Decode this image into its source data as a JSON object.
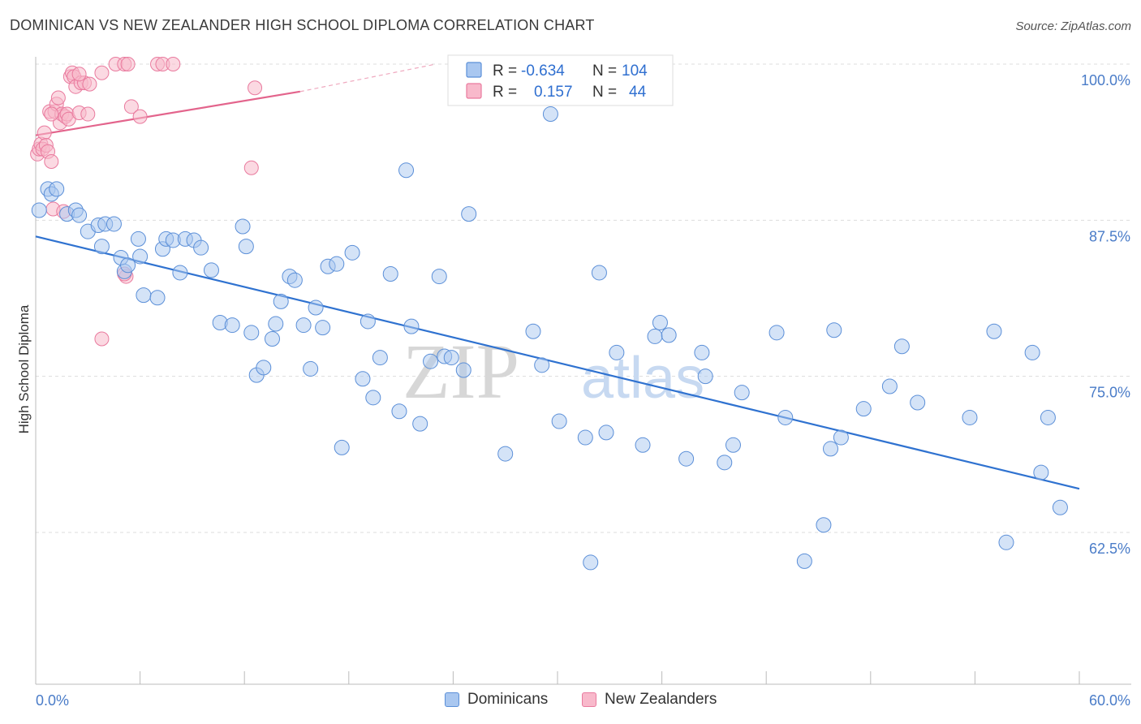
{
  "title": "DOMINICAN VS NEW ZEALANDER HIGH SCHOOL DIPLOMA CORRELATION CHART",
  "source": "Source: ZipAtlas.com",
  "watermark": {
    "zip": "ZIP",
    "atlas": "atlas"
  },
  "colors": {
    "blue_fill": "#a9c7f0",
    "blue_stroke": "#5b8fd8",
    "blue_line": "#2f72d0",
    "pink_fill": "#f8b9cb",
    "pink_stroke": "#e97a9e",
    "pink_line": "#e3648c",
    "tick_label": "#4a7cc8",
    "grid": "#dddddd"
  },
  "legend_top": [
    {
      "r_label": "R =",
      "r_value": "-0.634",
      "n_label": "N =",
      "n_value": "104"
    },
    {
      "r_label": "R =",
      "r_value": "0.157",
      "n_label": "N =",
      "n_value": "44"
    }
  ],
  "chart_data": {
    "type": "scatter",
    "title": "DOMINICAN VS NEW ZEALANDER HIGH SCHOOL DIPLOMA CORRELATION CHART",
    "xlabel": "",
    "ylabel": "High School Diploma",
    "xlim": [
      0,
      60
    ],
    "ylim": [
      52,
      101
    ],
    "x_tick_labels": [
      "0.0%",
      "60.0%"
    ],
    "y_ticks": [
      62.5,
      75.0,
      87.5,
      100.0
    ],
    "y_tick_labels": [
      "62.5%",
      "75.0%",
      "87.5%",
      "100.0%"
    ],
    "grid": "horizontal dashed",
    "legend_position": "top-center",
    "series": [
      {
        "name": "Dominicans",
        "r": -0.634,
        "n": 104,
        "trend": {
          "x": [
            0,
            60
          ],
          "y": [
            86.2,
            66.0
          ]
        },
        "points": [
          [
            0.2,
            88.3
          ],
          [
            0.7,
            90.0
          ],
          [
            0.9,
            89.6
          ],
          [
            1.2,
            90.0
          ],
          [
            1.8,
            88.0
          ],
          [
            2.3,
            88.3
          ],
          [
            2.5,
            87.9
          ],
          [
            3.0,
            86.6
          ],
          [
            3.6,
            87.1
          ],
          [
            3.8,
            85.4
          ],
          [
            4.0,
            87.2
          ],
          [
            4.5,
            87.2
          ],
          [
            4.9,
            84.5
          ],
          [
            5.1,
            83.4
          ],
          [
            5.3,
            83.9
          ],
          [
            5.9,
            86.0
          ],
          [
            6.0,
            84.6
          ],
          [
            6.2,
            81.5
          ],
          [
            7.0,
            81.3
          ],
          [
            7.3,
            85.2
          ],
          [
            7.5,
            86.0
          ],
          [
            7.9,
            85.9
          ],
          [
            8.3,
            83.3
          ],
          [
            8.6,
            86.0
          ],
          [
            9.1,
            85.9
          ],
          [
            9.5,
            85.3
          ],
          [
            10.1,
            83.5
          ],
          [
            10.6,
            79.3
          ],
          [
            11.3,
            79.1
          ],
          [
            11.9,
            87.0
          ],
          [
            12.1,
            85.4
          ],
          [
            12.4,
            78.5
          ],
          [
            12.7,
            75.1
          ],
          [
            13.1,
            75.7
          ],
          [
            13.6,
            78.0
          ],
          [
            13.8,
            79.2
          ],
          [
            14.1,
            81.0
          ],
          [
            14.6,
            83.0
          ],
          [
            14.9,
            82.7
          ],
          [
            15.4,
            79.1
          ],
          [
            15.8,
            75.6
          ],
          [
            16.1,
            80.5
          ],
          [
            16.5,
            78.9
          ],
          [
            16.8,
            83.8
          ],
          [
            17.3,
            84.0
          ],
          [
            17.6,
            69.3
          ],
          [
            18.2,
            84.9
          ],
          [
            18.8,
            74.8
          ],
          [
            19.1,
            79.4
          ],
          [
            19.4,
            73.3
          ],
          [
            19.8,
            76.5
          ],
          [
            20.4,
            83.2
          ],
          [
            20.9,
            72.2
          ],
          [
            21.3,
            91.5
          ],
          [
            21.6,
            79.0
          ],
          [
            22.1,
            71.2
          ],
          [
            22.7,
            76.2
          ],
          [
            23.2,
            83.0
          ],
          [
            23.5,
            76.6
          ],
          [
            23.9,
            76.5
          ],
          [
            24.6,
            75.5
          ],
          [
            24.9,
            88.0
          ],
          [
            25.4,
            100.0
          ],
          [
            26.5,
            100.0
          ],
          [
            27.0,
            68.8
          ],
          [
            28.6,
            78.6
          ],
          [
            29.1,
            75.9
          ],
          [
            29.6,
            96.0
          ],
          [
            30.1,
            71.4
          ],
          [
            31.6,
            70.1
          ],
          [
            31.9,
            60.1
          ],
          [
            32.4,
            83.3
          ],
          [
            32.8,
            70.5
          ],
          [
            33.4,
            76.9
          ],
          [
            34.9,
            69.5
          ],
          [
            35.6,
            78.2
          ],
          [
            35.9,
            79.3
          ],
          [
            36.4,
            78.3
          ],
          [
            37.4,
            68.4
          ],
          [
            38.3,
            76.9
          ],
          [
            38.5,
            75.0
          ],
          [
            39.6,
            68.1
          ],
          [
            40.1,
            69.5
          ],
          [
            40.6,
            73.7
          ],
          [
            42.6,
            78.5
          ],
          [
            43.1,
            71.7
          ],
          [
            45.3,
            63.1
          ],
          [
            45.7,
            69.2
          ],
          [
            46.3,
            70.1
          ],
          [
            47.6,
            72.4
          ],
          [
            49.1,
            74.2
          ],
          [
            49.8,
            77.4
          ],
          [
            50.7,
            72.9
          ],
          [
            53.7,
            71.7
          ],
          [
            55.1,
            78.6
          ],
          [
            55.8,
            61.7
          ],
          [
            57.3,
            76.9
          ],
          [
            57.8,
            67.3
          ],
          [
            58.2,
            71.7
          ],
          [
            58.9,
            64.5
          ],
          [
            60.4,
            68.4
          ],
          [
            61.2,
            60.5
          ],
          [
            45.9,
            78.7
          ],
          [
            44.2,
            60.2
          ]
        ]
      },
      {
        "name": "New Zealanders",
        "r": 0.157,
        "n": 44,
        "trend": {
          "x": [
            0,
            15.2
          ],
          "y": [
            94.3,
            97.8
          ]
        },
        "trend_extension": {
          "x": [
            15.2,
            23.0
          ],
          "y": [
            97.8,
            100.0
          ]
        },
        "points": [
          [
            0.1,
            92.8
          ],
          [
            0.2,
            93.2
          ],
          [
            0.3,
            93.6
          ],
          [
            0.4,
            93.2
          ],
          [
            0.5,
            94.5
          ],
          [
            0.6,
            93.5
          ],
          [
            0.7,
            93.0
          ],
          [
            0.8,
            96.2
          ],
          [
            0.9,
            92.2
          ],
          [
            1.0,
            88.4
          ],
          [
            1.1,
            96.2
          ],
          [
            1.2,
            96.8
          ],
          [
            1.3,
            97.3
          ],
          [
            1.4,
            95.3
          ],
          [
            1.5,
            96.0
          ],
          [
            1.6,
            88.2
          ],
          [
            1.7,
            95.8
          ],
          [
            1.8,
            96.0
          ],
          [
            1.9,
            95.6
          ],
          [
            2.0,
            99.0
          ],
          [
            2.1,
            99.3
          ],
          [
            2.2,
            99.0
          ],
          [
            2.3,
            98.2
          ],
          [
            2.5,
            96.1
          ],
          [
            2.6,
            98.5
          ],
          [
            2.8,
            98.5
          ],
          [
            3.0,
            96.0
          ],
          [
            3.1,
            98.4
          ],
          [
            3.8,
            99.3
          ],
          [
            4.6,
            100.0
          ],
          [
            5.1,
            100.0
          ],
          [
            5.3,
            100.0
          ],
          [
            5.2,
            83.0
          ],
          [
            5.5,
            96.6
          ],
          [
            5.1,
            83.2
          ],
          [
            6.0,
            95.8
          ],
          [
            7.0,
            100.0
          ],
          [
            7.3,
            100.0
          ],
          [
            7.9,
            100.0
          ],
          [
            3.8,
            78.0
          ],
          [
            12.4,
            91.7
          ],
          [
            12.6,
            98.1
          ],
          [
            2.5,
            99.2
          ],
          [
            0.9,
            96.0
          ]
        ]
      }
    ]
  }
}
